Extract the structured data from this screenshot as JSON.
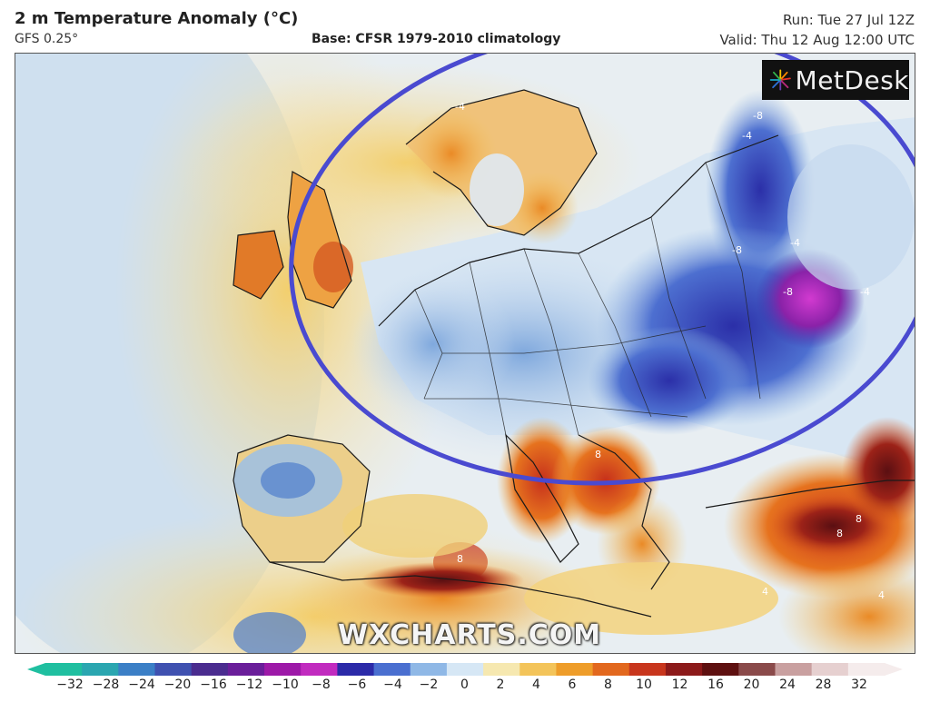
{
  "header": {
    "title": "2 m Temperature Anomaly (°C)",
    "model": "GFS 0.25°",
    "base": "Base: CFSR 1979-2010 climatology",
    "run": "Run: Tue 27 Jul 12Z",
    "valid": "Valid: Thu 12 Aug 12:00 UTC"
  },
  "logo": {
    "text": "MetDesk"
  },
  "watermark": "WXCHARTS.COM",
  "map_labels": [
    "-8",
    "-8",
    "-4",
    "-4",
    "-4",
    "-4",
    "-8",
    "8",
    "8",
    "8",
    "4",
    "4",
    "8"
  ],
  "colorbar": {
    "ticks": [
      "−32",
      "−28",
      "−24",
      "−20",
      "−16",
      "−12",
      "−10",
      "−8",
      "−6",
      "−4",
      "−2",
      "0",
      "2",
      "4",
      "6",
      "8",
      "10",
      "12",
      "16",
      "20",
      "24",
      "28",
      "32"
    ],
    "colors": [
      "#1fbfa0",
      "#2aa6b0",
      "#3b7fc6",
      "#3f51b0",
      "#4a2c8f",
      "#6a1e9a",
      "#9d19a8",
      "#c12bbf",
      "#2b2aa8",
      "#4a6fd0",
      "#8fb8e6",
      "#d6e7f5",
      "#f6e8b0",
      "#f3c45a",
      "#ee9d2a",
      "#e2681e",
      "#c8361d",
      "#8c1a1a",
      "#5e1010",
      "#8a4a4a",
      "#c9a0a0",
      "#e6d0d0",
      "#f5ecec"
    ]
  },
  "colors": {
    "ellipse": "#4a4ad0",
    "ocean_warm": "#f2d27a",
    "cool": "#bcd6ee"
  }
}
